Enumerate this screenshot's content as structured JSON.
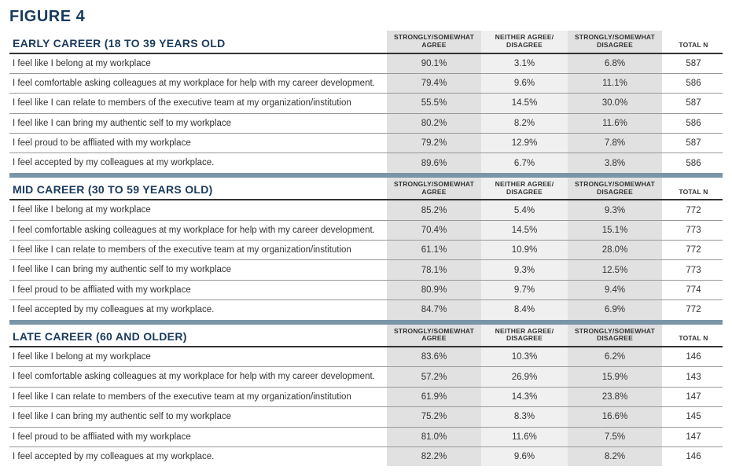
{
  "figure_title": "FIGURE 4",
  "columns": [
    "STRONGLY/SOMEWHAT AGREE",
    "NEITHER AGREE/ DISAGREE",
    "STRONGLY/SOMEWHAT DISAGREE",
    "TOTAL N"
  ],
  "colors": {
    "title": "#1a3a5c",
    "section_bar": "#7a94a8",
    "header_underline": "#333333",
    "row_border": "#999999",
    "shade_dark": "#e1e1e1",
    "shade_light": "#f0f0f0",
    "background": "#ffffff"
  },
  "sections": [
    {
      "title": "EARLY CAREER (18 TO 39 YEARS OLD",
      "rows": [
        {
          "label": "I feel like I belong at my workplace",
          "v": [
            "90.1%",
            "3.1%",
            "6.8%",
            "587"
          ]
        },
        {
          "label": "I feel comfortable asking colleagues at my workplace for help with my career development.",
          "v": [
            "79.4%",
            "9.6%",
            "11.1%",
            "586"
          ]
        },
        {
          "label": "I feel like I can relate to members of the executive team at my organization/institution",
          "v": [
            "55.5%",
            "14.5%",
            "30.0%",
            "587"
          ]
        },
        {
          "label": "I feel like I can bring my authentic self to my workplace",
          "v": [
            "80.2%",
            "8.2%",
            "11.6%",
            "586"
          ]
        },
        {
          "label": "I feel proud to be affliated with my workplace",
          "v": [
            "79.2%",
            "12.9%",
            "7.8%",
            "587"
          ]
        },
        {
          "label": "I feel accepted by my colleagues at my workplace.",
          "v": [
            "89.6%",
            "6.7%",
            "3.8%",
            "586"
          ]
        }
      ]
    },
    {
      "title": "MID CAREER (30 TO 59 YEARS OLD)",
      "rows": [
        {
          "label": "I feel like I belong at my workplace",
          "v": [
            "85.2%",
            "5.4%",
            "9.3%",
            "772"
          ]
        },
        {
          "label": "I feel comfortable asking colleagues at my workplace for help with my career development.",
          "v": [
            "70.4%",
            "14.5%",
            "15.1%",
            "773"
          ]
        },
        {
          "label": "I feel like I can relate to members of the executive team at my organization/institution",
          "v": [
            "61.1%",
            "10.9%",
            "28.0%",
            "772"
          ]
        },
        {
          "label": "I feel like I can bring my authentic self to my workplace",
          "v": [
            "78.1%",
            "9.3%",
            "12.5%",
            "773"
          ]
        },
        {
          "label": "I feel proud to be affliated with my workplace",
          "v": [
            "80.9%",
            "9.7%",
            "9.4%",
            "774"
          ]
        },
        {
          "label": "I feel accepted by my colleagues at my workplace.",
          "v": [
            "84.7%",
            "8.4%",
            "6.9%",
            "772"
          ]
        }
      ]
    },
    {
      "title": "LATE CAREER (60 AND OLDER)",
      "rows": [
        {
          "label": "I feel like I belong at my workplace",
          "v": [
            "83.6%",
            "10.3%",
            "6.2%",
            "146"
          ]
        },
        {
          "label": "I feel comfortable asking colleagues at my workplace for help with my career development.",
          "v": [
            "57.2%",
            "26.9%",
            "15.9%",
            "143"
          ]
        },
        {
          "label": "I feel like I can relate to members of the executive team at my organization/institution",
          "v": [
            "61.9%",
            "14.3%",
            "23.8%",
            "147"
          ]
        },
        {
          "label": "I feel like I can bring my authentic self to my workplace",
          "v": [
            "75.2%",
            "8.3%",
            "16.6%",
            "145"
          ]
        },
        {
          "label": "I feel proud to be affliated with my workplace",
          "v": [
            "81.0%",
            "11.6%",
            "7.5%",
            "147"
          ]
        },
        {
          "label": "I feel accepted by my colleagues at my workplace.",
          "v": [
            "82.2%",
            "9.6%",
            "8.2%",
            "146"
          ]
        }
      ]
    }
  ]
}
